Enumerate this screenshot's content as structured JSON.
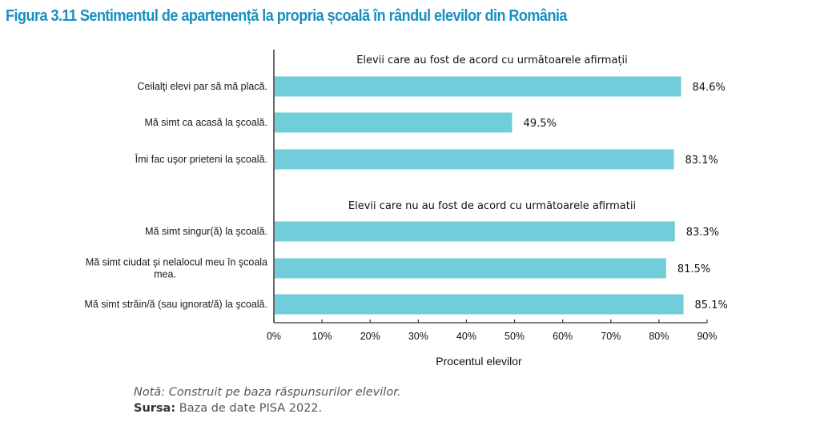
{
  "figure": {
    "title": "Figura 3.11 Sentimentul de apartenență la propria școală în rândul elevilor din România",
    "note_label": "Notă:",
    "note_text": "Construit pe baza răspunsurilor elevilor.",
    "source_label": "Sursa:",
    "source_text": "Baza de date PISA 2022."
  },
  "colors": {
    "bar": "#70cdd9",
    "title": "#1a8fc0",
    "axis": "#333333"
  },
  "chart_data": {
    "type": "bar",
    "orientation": "horizontal",
    "title": "Figura 3.11 Sentimentul de apartenență la propria școală în rândul elevilor din România",
    "xlabel": "Procentul elevilor",
    "ylabel": "",
    "xlim": [
      0,
      90
    ],
    "xticks": [
      0,
      10,
      20,
      30,
      40,
      50,
      60,
      70,
      80,
      90
    ],
    "xtick_labels": [
      "0%",
      "10%",
      "20%",
      "30%",
      "40%",
      "50%",
      "60%",
      "70%",
      "80%",
      "90%"
    ],
    "grid": false,
    "groups": [
      {
        "label": "Elevii care au fost de acord cu următoarele afirmații",
        "categories": [
          [
            "Ceilalţi elevi par să mă placă."
          ],
          [
            "Mă simt ca acasă la şcoală."
          ],
          [
            "Îmi fac uşor prieteni la şcoală."
          ]
        ],
        "values": [
          84.6,
          49.5,
          83.1
        ],
        "value_labels": [
          "84.6%",
          "49.5%",
          "83.1%"
        ]
      },
      {
        "label": "Elevii care nu au fost de acord cu următoarele afirmatii",
        "categories": [
          [
            "Mă simt singur(ă) la şcoală."
          ],
          [
            "Mă simt ciudat şi nelalocul meu în şcoala",
            "mea."
          ],
          [
            "Mă simt străin/ă (sau ignorat/ă) la şcoală."
          ]
        ],
        "values": [
          83.3,
          81.5,
          85.1
        ],
        "value_labels": [
          "83.3%",
          "81.5%",
          "85.1%"
        ]
      }
    ]
  }
}
